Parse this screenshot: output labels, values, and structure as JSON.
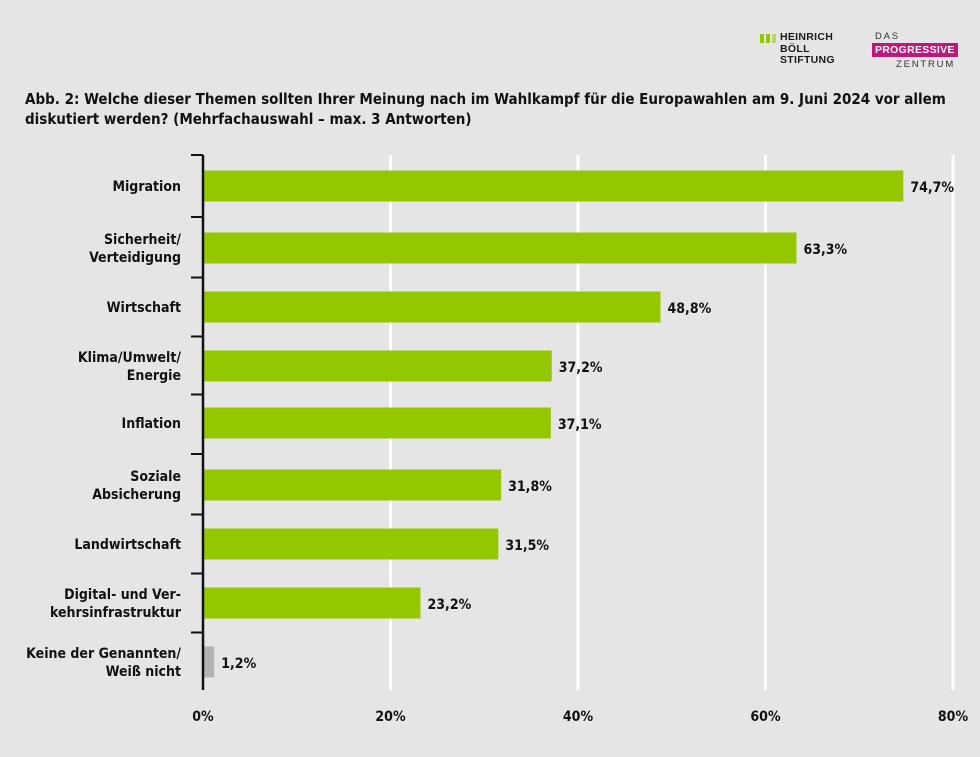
{
  "logos": {
    "hb_lines": [
      "HEINRICH",
      "BÖLL",
      "STIFTUNG"
    ],
    "dp_top": "DAS",
    "dp_main": "PROGRESSIVE",
    "dp_bottom": "ZENTRUM",
    "dp_color": "#c2167b",
    "hb_color": "#93c800"
  },
  "title": "Abb. 2: Welche dieser Themen sollten Ihrer Meinung nach im Wahlkampf für die Europawahlen am 9. Juni 2024 vor allem diskutiert werden? (Mehrfachauswahl – max. 3 Antworten)",
  "chart_data": {
    "type": "bar",
    "orientation": "horizontal",
    "categories": [
      [
        "Migration"
      ],
      [
        "Sicherheit/",
        "Verteidigung"
      ],
      [
        "Wirtschaft"
      ],
      [
        "Klima/Umwelt/",
        "Energie"
      ],
      [
        "Inflation"
      ],
      [
        "Soziale",
        "Absicherung"
      ],
      [
        "Landwirtschaft"
      ],
      [
        "Digital- und Ver-",
        "kehrsinfrastruktur"
      ],
      [
        "Keine der Genannten/",
        "Weiß nicht"
      ]
    ],
    "values": [
      74.7,
      63.3,
      48.8,
      37.2,
      37.1,
      31.8,
      31.5,
      23.2,
      1.2
    ],
    "value_labels": [
      "74,7%",
      "63,3%",
      "48,8%",
      "37,2%",
      "37,1%",
      "31,8%",
      "31,5%",
      "23,2%",
      "1,2%"
    ],
    "bar_colors": [
      "#93c800",
      "#93c800",
      "#93c800",
      "#93c800",
      "#93c800",
      "#93c800",
      "#93c800",
      "#93c800",
      "#b3b3b3"
    ],
    "xlim": [
      0,
      80
    ],
    "x_ticks": [
      0,
      20,
      40,
      60,
      80
    ],
    "x_tick_labels": [
      "0%",
      "20%",
      "40%",
      "60%",
      "80%"
    ],
    "grid": true,
    "background": "#e6e5e5"
  }
}
